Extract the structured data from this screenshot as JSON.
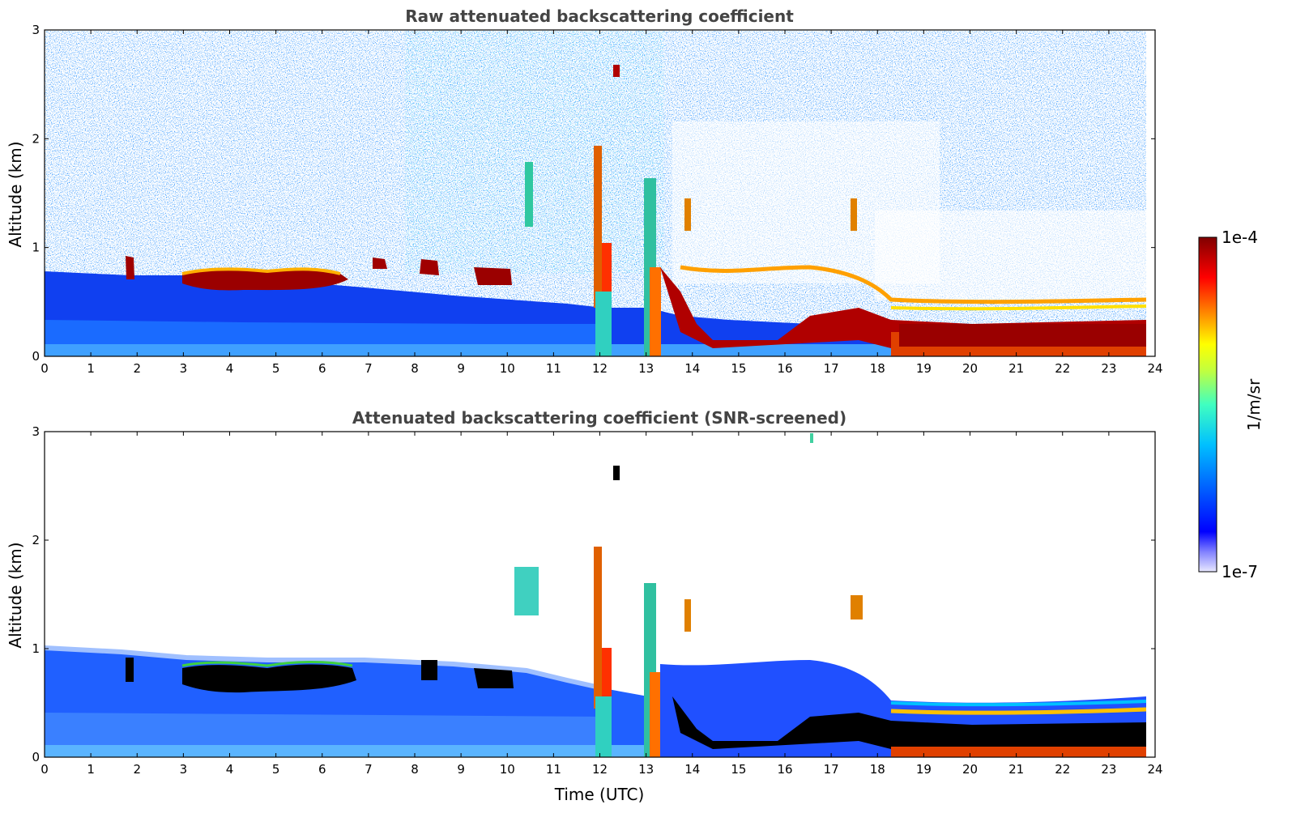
{
  "chart_data": [
    {
      "type": "heatmap",
      "title": "Raw attenuated backscattering coefficient",
      "xlabel": "",
      "ylabel": "Altitude (km)",
      "xlim": [
        0,
        24
      ],
      "ylim": [
        0,
        3
      ],
      "x_ticks": [
        "0",
        "1",
        "2",
        "3",
        "4",
        "5",
        "6",
        "7",
        "8",
        "9",
        "10",
        "11",
        "12",
        "13",
        "14",
        "15",
        "16",
        "17",
        "18",
        "19",
        "20",
        "21",
        "22",
        "23",
        "24"
      ],
      "y_ticks": [
        "0",
        "1",
        "2",
        "3"
      ],
      "screened": false
    },
    {
      "type": "heatmap",
      "title": "Attenuated backscattering coefficient (SNR-screened)",
      "xlabel": "Time (UTC)",
      "ylabel": "Altitude (km)",
      "xlim": [
        0,
        24
      ],
      "ylim": [
        0,
        3
      ],
      "x_ticks": [
        "0",
        "1",
        "2",
        "3",
        "4",
        "5",
        "6",
        "7",
        "8",
        "9",
        "10",
        "11",
        "12",
        "13",
        "14",
        "15",
        "16",
        "17",
        "18",
        "19",
        "20",
        "21",
        "22",
        "23",
        "24"
      ],
      "y_ticks": [
        "0",
        "1",
        "2",
        "3"
      ],
      "screened": true
    }
  ],
  "colorbar": {
    "max_label": "1e-4",
    "min_label": "1e-7",
    "unit_label": "1/m/sr",
    "colors": [
      "#e8e8ff",
      "#8080ff",
      "#0000ff",
      "#0060ff",
      "#00c0ff",
      "#40ffc0",
      "#c0ff40",
      "#ffff00",
      "#ff8000",
      "#ff0000",
      "#800000"
    ]
  }
}
